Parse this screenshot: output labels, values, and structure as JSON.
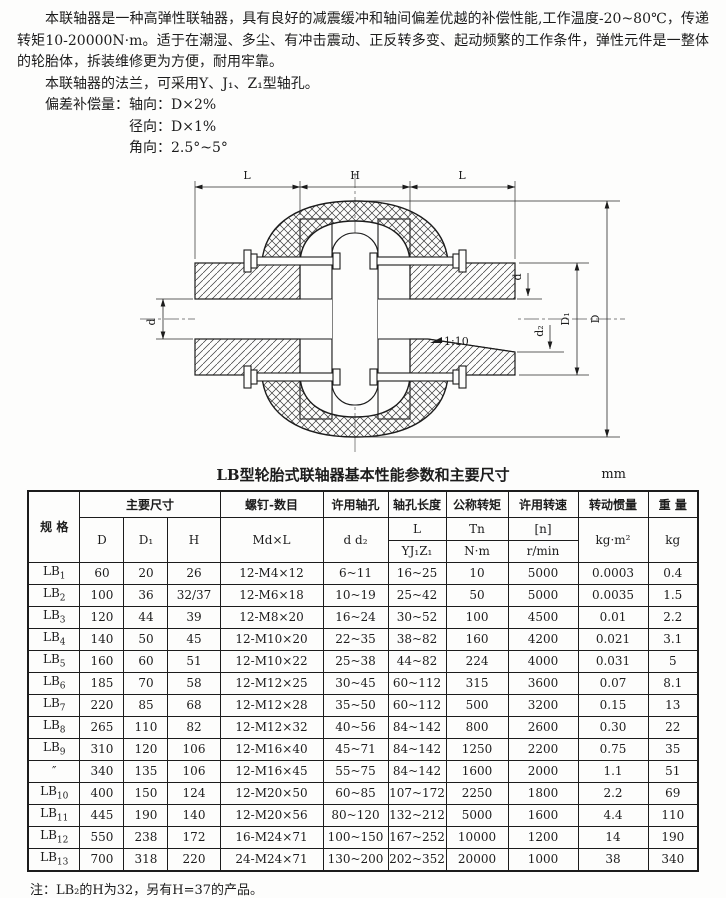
{
  "intro": {
    "p1": "本联轴器是一种高弹性联轴器，具有良好的减震缓冲和轴间偏差优越的补偿性能,工作温度-20~80℃，传递转矩10-20000N·m。适于在潮湿、多尘、有冲击震动、正反转多变、起动频繁的工作条件，弹性元件是一整体的轮胎体，拆装维修更为方便，耐用牢靠。",
    "p2": "本联轴器的法兰，可采用Y、J₁、Z₁型轴孔。",
    "comp_label": "偏差补偿量：",
    "comp_items": [
      "轴向：D×2%",
      "径向：D×1%",
      "角向：2.5°~5°"
    ]
  },
  "drawing": {
    "dims": {
      "top_left": "L",
      "top_mid": "H",
      "top_right": "L",
      "left_bore": "d",
      "right_bore": "d",
      "right_bore_end": "d₂",
      "flange_dia": "D₁",
      "outer_dia": "D",
      "taper": "1:10"
    }
  },
  "table": {
    "title": "LB型轮胎式联轴器基本性能参数和主要尺寸",
    "unit": "mm",
    "header": {
      "spec": "规  格",
      "main_dims": "主要尺寸",
      "col_d": "D",
      "col_d1": "D₁",
      "col_h": "H",
      "screw": "螺钉-数目",
      "screw_sub": "Md×L",
      "allow_bore": "许用轴孔",
      "allow_bore_sub": "d d₂",
      "bore_len": "轴孔长度",
      "bore_len_sub1": "L",
      "bore_len_sub2": "YJ₁Z₁",
      "torque": "公称转矩",
      "torque_sub1": "Tn",
      "torque_sub2": "N·m",
      "speed": "许用转速",
      "speed_sub1": "[n]",
      "speed_sub2": "r/min",
      "inertia": "转动惯量",
      "inertia_sub": "kg·m²",
      "weight": "重  量",
      "weight_sub": "kg"
    },
    "rows": [
      [
        "LB1",
        "60",
        "20",
        "26",
        "12-M4×12",
        "6~11",
        "16~25",
        "10",
        "5000",
        "0.0003",
        "0.4"
      ],
      [
        "LB2",
        "100",
        "36",
        "32/37",
        "12-M6×18",
        "10~19",
        "25~42",
        "50",
        "5000",
        "0.0035",
        "1.5"
      ],
      [
        "LB3",
        "120",
        "44",
        "39",
        "12-M8×20",
        "16~24",
        "30~52",
        "100",
        "4500",
        "0.01",
        "2.2"
      ],
      [
        "LB4",
        "140",
        "50",
        "45",
        "12-M10×20",
        "22~35",
        "38~82",
        "160",
        "4200",
        "0.021",
        "3.1"
      ],
      [
        "LB5",
        "160",
        "60",
        "51",
        "12-M10×22",
        "25~38",
        "44~82",
        "224",
        "4000",
        "0.031",
        "5"
      ],
      [
        "LB6",
        "185",
        "70",
        "58",
        "12-M12×25",
        "30~45",
        "60~112",
        "315",
        "3600",
        "0.07",
        "8.1"
      ],
      [
        "LB7",
        "220",
        "85",
        "68",
        "12-M12×28",
        "35~50",
        "60~112",
        "500",
        "3200",
        "0.15",
        "13"
      ],
      [
        "LB8",
        "265",
        "110",
        "82",
        "12-M12×32",
        "40~56",
        "84~142",
        "800",
        "2600",
        "0.30",
        "22"
      ],
      [
        "LB9",
        "310",
        "120",
        "106",
        "12-M16×40",
        "45~71",
        "84~142",
        "1250",
        "2200",
        "0.75",
        "35"
      ],
      [
        "″",
        "340",
        "135",
        "106",
        "12-M16×45",
        "55~75",
        "84~142",
        "1600",
        "2000",
        "1.1",
        "51"
      ],
      [
        "LB10",
        "400",
        "150",
        "124",
        "12-M20×50",
        "60~85",
        "107~172",
        "2250",
        "1800",
        "2.2",
        "69"
      ],
      [
        "LB11",
        "445",
        "190",
        "140",
        "12-M20×56",
        "80~120",
        "132~212",
        "5000",
        "1600",
        "4.4",
        "110"
      ],
      [
        "LB12",
        "550",
        "238",
        "172",
        "16-M24×71",
        "100~150",
        "167~252",
        "10000",
        "1200",
        "14",
        "190"
      ],
      [
        "LB13",
        "700",
        "318",
        "220",
        "24-M24×71",
        "130~200",
        "202~352",
        "20000",
        "1000",
        "38",
        "340"
      ]
    ]
  },
  "footnote": "注：LB₂的H为32，另有H=37的产品。"
}
